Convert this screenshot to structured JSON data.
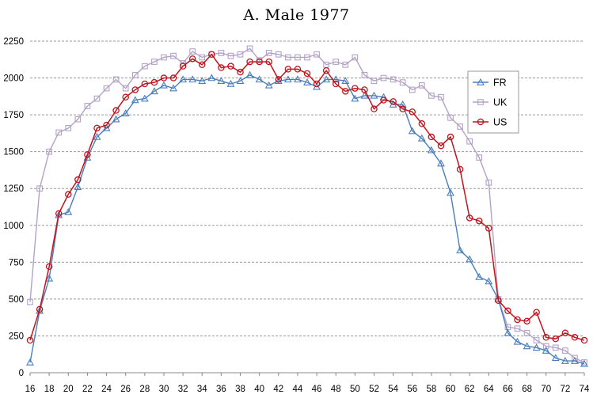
{
  "chart_data": {
    "type": "line",
    "title": "A. Male 1977",
    "xlabel": "",
    "ylabel": "",
    "xlim": [
      16,
      74
    ],
    "ylim": [
      0,
      2250
    ],
    "yticks": [
      0,
      250,
      500,
      750,
      1000,
      1250,
      1500,
      1750,
      2000,
      2250
    ],
    "xticks": [
      16,
      18,
      20,
      22,
      24,
      26,
      28,
      30,
      32,
      34,
      36,
      38,
      40,
      42,
      44,
      46,
      48,
      50,
      52,
      54,
      56,
      58,
      60,
      62,
      64,
      66,
      68,
      70,
      72,
      74
    ],
    "grid": "horizontal dashed",
    "legend_position": "right",
    "x": [
      16,
      17,
      18,
      19,
      20,
      21,
      22,
      23,
      24,
      25,
      26,
      27,
      28,
      29,
      30,
      31,
      32,
      33,
      34,
      35,
      36,
      37,
      38,
      39,
      40,
      41,
      42,
      43,
      44,
      45,
      46,
      47,
      48,
      49,
      50,
      51,
      52,
      53,
      54,
      55,
      56,
      57,
      58,
      59,
      60,
      61,
      62,
      63,
      64,
      65,
      66,
      67,
      68,
      69,
      70,
      71,
      72,
      73,
      74
    ],
    "series": [
      {
        "name": "FR",
        "color": "#4a7ebb",
        "marker": "triangle",
        "values": [
          70,
          420,
          640,
          1070,
          1090,
          1260,
          1460,
          1600,
          1660,
          1720,
          1760,
          1850,
          1860,
          1910,
          1950,
          1930,
          1990,
          1990,
          1980,
          2000,
          1980,
          1960,
          1980,
          2020,
          1990,
          1950,
          1980,
          1990,
          1990,
          1970,
          1940,
          1990,
          1990,
          1980,
          1860,
          1880,
          1880,
          1870,
          1820,
          1820,
          1640,
          1590,
          1510,
          1420,
          1220,
          830,
          770,
          650,
          620,
          500,
          270,
          210,
          180,
          170,
          150,
          100,
          80,
          80,
          60
        ]
      },
      {
        "name": "UK",
        "color": "#b3a2c7",
        "marker": "square",
        "values": [
          480,
          1250,
          1500,
          1630,
          1660,
          1720,
          1810,
          1860,
          1930,
          1990,
          1930,
          2020,
          2080,
          2110,
          2140,
          2150,
          2100,
          2180,
          2140,
          2160,
          2170,
          2150,
          2160,
          2200,
          2120,
          2170,
          2160,
          2140,
          2140,
          2140,
          2160,
          2090,
          2110,
          2090,
          2140,
          2020,
          1980,
          2000,
          1990,
          1970,
          1920,
          1950,
          1880,
          1870,
          1730,
          1670,
          1570,
          1460,
          1290,
          500,
          310,
          300,
          270,
          220,
          180,
          170,
          150,
          100,
          70
        ]
      },
      {
        "name": "US",
        "color": "#c0141e",
        "marker": "circle",
        "values": [
          220,
          430,
          720,
          1080,
          1210,
          1310,
          1480,
          1660,
          1680,
          1780,
          1870,
          1920,
          1960,
          1970,
          2000,
          2000,
          2080,
          2130,
          2090,
          2160,
          2070,
          2080,
          2040,
          2110,
          2110,
          2110,
          1990,
          2060,
          2060,
          2030,
          1960,
          2050,
          1960,
          1910,
          1930,
          1920,
          1790,
          1850,
          1840,
          1790,
          1770,
          1690,
          1600,
          1540,
          1600,
          1380,
          1050,
          1030,
          980,
          490,
          420,
          360,
          350,
          410,
          240,
          230,
          270,
          240,
          220
        ]
      }
    ]
  }
}
